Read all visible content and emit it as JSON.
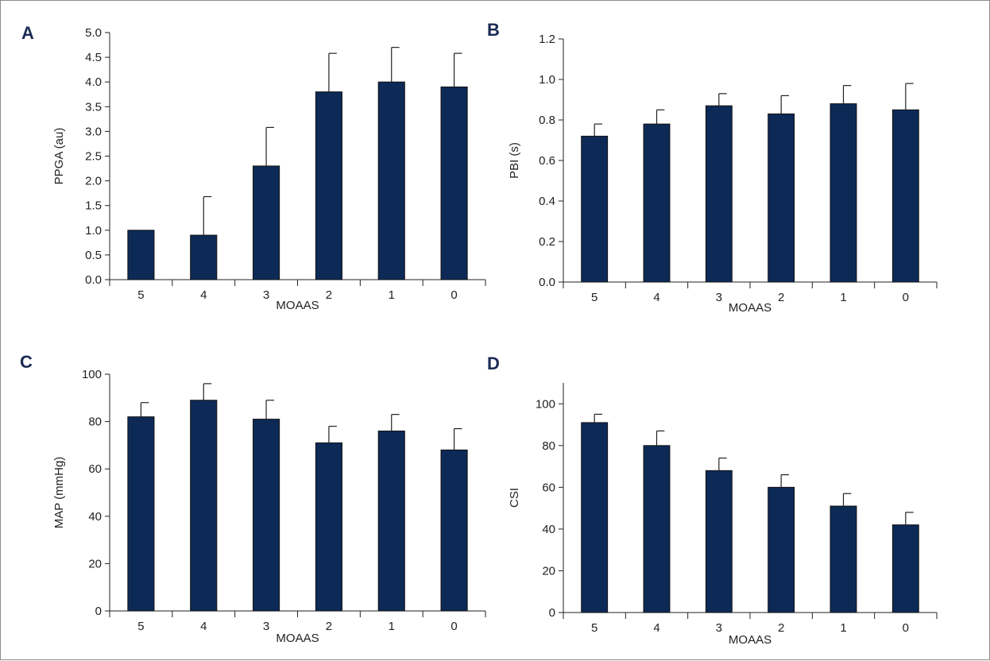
{
  "colors": {
    "bar": "#0d2a57",
    "axis": "#222222",
    "letter": "#1a2a55"
  },
  "chart_data": [
    {
      "panel": "A",
      "type": "bar",
      "xlabel": "MOAAS",
      "ylabel": "PPGA (au)",
      "categories": [
        "5",
        "4",
        "3",
        "2",
        "1",
        "0"
      ],
      "values": [
        1.0,
        0.9,
        2.3,
        3.8,
        4.0,
        3.9
      ],
      "errors": [
        0.0,
        0.78,
        0.78,
        0.78,
        0.7,
        0.68
      ],
      "ylim": [
        0,
        5.0
      ],
      "yticks": [
        0.0,
        0.5,
        1.0,
        1.5,
        2.0,
        2.5,
        3.0,
        3.5,
        4.0,
        4.5,
        5.0
      ],
      "ytick_labels": [
        "0.0",
        "0.5",
        "1.0",
        "1.5",
        "2.0",
        "2.5",
        "3.0",
        "3.5",
        "4.0",
        "4.5",
        "5.0"
      ]
    },
    {
      "panel": "B",
      "type": "bar",
      "xlabel": "MOAAS",
      "ylabel": "PBI (s)",
      "categories": [
        "5",
        "4",
        "3",
        "2",
        "1",
        "0"
      ],
      "values": [
        0.72,
        0.78,
        0.87,
        0.83,
        0.88,
        0.85
      ],
      "errors": [
        0.06,
        0.07,
        0.06,
        0.09,
        0.09,
        0.13
      ],
      "ylim": [
        0,
        1.2
      ],
      "yticks": [
        0.0,
        0.2,
        0.4,
        0.6,
        0.8,
        1.0,
        1.2
      ],
      "ytick_labels": [
        "0.0",
        "0.2",
        "0.4",
        "0.6",
        "0.8",
        "1.0",
        "1.2"
      ]
    },
    {
      "panel": "C",
      "type": "bar",
      "xlabel": "MOAAS",
      "ylabel": "MAP (mmHg)",
      "categories": [
        "5",
        "4",
        "3",
        "2",
        "1",
        "0"
      ],
      "values": [
        82,
        89,
        81,
        71,
        76,
        68
      ],
      "errors": [
        6,
        7,
        8,
        7,
        7,
        9
      ],
      "ylim": [
        0,
        100
      ],
      "yticks": [
        0,
        20,
        40,
        60,
        80,
        100
      ],
      "ytick_labels": [
        "0",
        "20",
        "40",
        "60",
        "80",
        "100"
      ]
    },
    {
      "panel": "D",
      "type": "bar",
      "xlabel": "MOAAS",
      "ylabel": "CSI",
      "categories": [
        "5",
        "4",
        "3",
        "2",
        "1",
        "0"
      ],
      "values": [
        91,
        80,
        68,
        60,
        51,
        42
      ],
      "errors": [
        4,
        7,
        6,
        6,
        6,
        6
      ],
      "ylim": [
        0,
        110
      ],
      "yticks": [
        0,
        20,
        40,
        60,
        80,
        100
      ],
      "ytick_labels": [
        "0",
        "20",
        "40",
        "60",
        "80",
        "100"
      ]
    }
  ]
}
